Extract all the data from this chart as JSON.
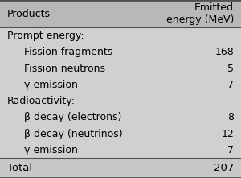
{
  "bg_color": "#d0d0d0",
  "header_bg": "#b8b8b8",
  "footer_bg": "#c8c8c8",
  "header_col1": "Products",
  "header_col2": "Emitted\nenergy (MeV)",
  "rows": [
    {
      "label": "Prompt energy:",
      "value": "",
      "indent": false,
      "category": true
    },
    {
      "label": "Fission fragments",
      "value": "168",
      "indent": true,
      "category": false
    },
    {
      "label": "Fission neutrons",
      "value": "5",
      "indent": true,
      "category": false
    },
    {
      "label": "γ emission",
      "value": "7",
      "indent": true,
      "category": false
    },
    {
      "label": "Radioactivity:",
      "value": "",
      "indent": false,
      "category": true
    },
    {
      "label": "β decay (electrons)",
      "value": "8",
      "indent": true,
      "category": false
    },
    {
      "label": "β decay (neutrinos)",
      "value": "12",
      "indent": true,
      "category": false
    },
    {
      "label": "γ emission",
      "value": "7",
      "indent": true,
      "category": false
    }
  ],
  "footer_label": "Total",
  "footer_value": "207",
  "font_size": 9,
  "header_font_size": 9,
  "line_color": "#505050"
}
